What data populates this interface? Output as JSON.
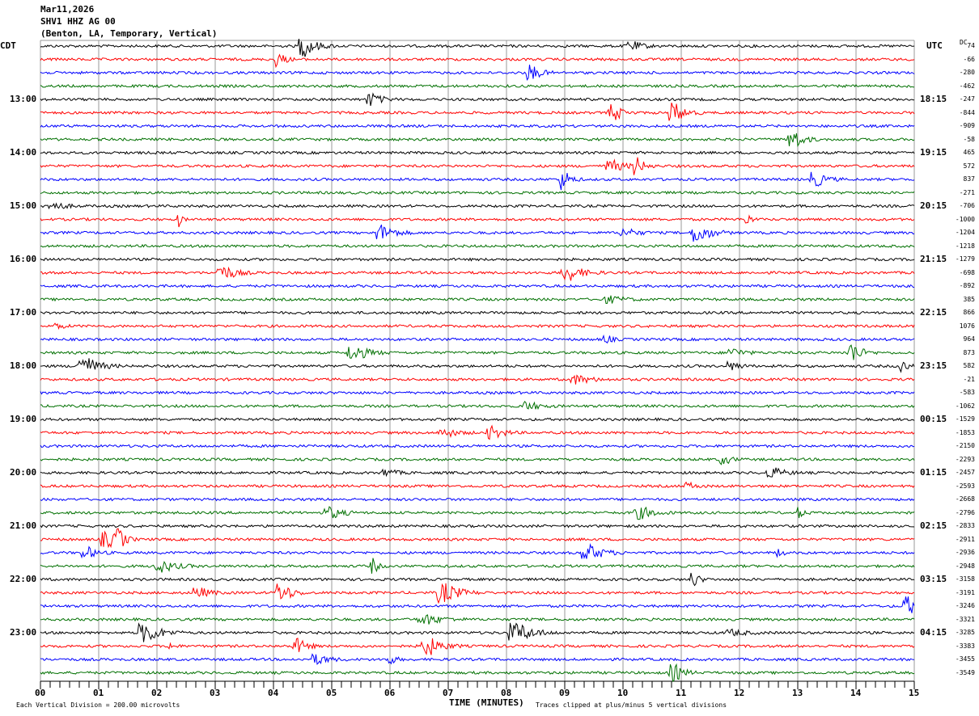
{
  "header": {
    "date": "Mar11,2026",
    "station": "SHV1 HHZ AG 00",
    "location": "(Benton, LA, Temporary, Vertical)"
  },
  "left_axis_title": "CDT",
  "right_axis_title": "UTC",
  "dc_label": "DC",
  "chart_data": {
    "type": "line",
    "subtype": "helicorder",
    "xlabel": "TIME (MINUTES)",
    "xlim": [
      0,
      15
    ],
    "x_ticks": [
      "00",
      "01",
      "02",
      "03",
      "04",
      "05",
      "06",
      "07",
      "08",
      "09",
      "10",
      "11",
      "12",
      "13",
      "14",
      "15"
    ],
    "grid": "vertical lines each minute",
    "trace_colors": [
      "#000000",
      "#ff0000",
      "#0000ff",
      "#007000"
    ],
    "left_time_labels": [
      "13:00",
      "14:00",
      "15:00",
      "16:00",
      "17:00",
      "18:00",
      "19:00",
      "20:00",
      "21:00",
      "22:00",
      "23:00"
    ],
    "right_time_labels": [
      "18:15",
      "19:15",
      "20:15",
      "21:15",
      "22:15",
      "23:15",
      "00:15",
      "01:15",
      "02:15",
      "03:15",
      "04:15"
    ],
    "dc_offsets": [
      74,
      -66,
      -280,
      -462,
      -247,
      -844,
      -909,
      -58,
      465,
      572,
      837,
      -271,
      -706,
      -1000,
      -1204,
      -1218,
      -1279,
      -698,
      -892,
      385,
      866,
      1076,
      964,
      873,
      582,
      -21,
      -583,
      -1062,
      -1529,
      -1853,
      -2150,
      -2293,
      -2457,
      -2593,
      -2668,
      -2796,
      -2833,
      -2911,
      -2936,
      -2948,
      -3158,
      -3191,
      -3246,
      -3321,
      -3285,
      -3383,
      -3455,
      -3549
    ]
  },
  "footer": {
    "scale_note": "Each Vertical Division =  200.00 microvolts",
    "clip_note": "Traces clipped at plus/minus 5 vertical divisions"
  }
}
